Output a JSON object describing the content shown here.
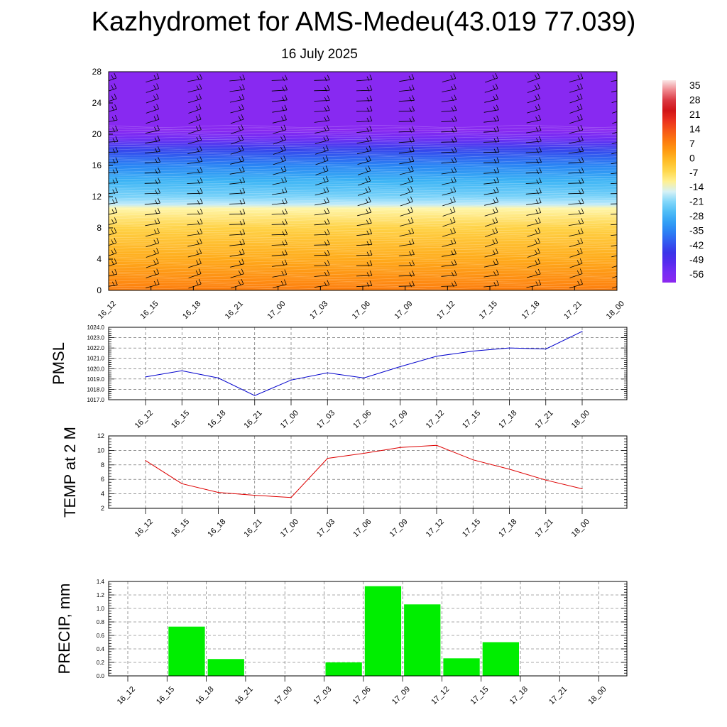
{
  "header": {
    "title": "Kazhydromet for AMS-Medeu(43.019 77.039)",
    "date": "16 July 2025"
  },
  "colors": {
    "pmsl_line": "#0000cc",
    "temp_line": "#dd0000",
    "precip_bar": "#00ee00"
  },
  "chart_data": [
    {
      "type": "heatmap",
      "id": "vertical-profile",
      "categories": [
        "16_12",
        "16_15",
        "16_18",
        "16_21",
        "17_00",
        "17_03",
        "17_06",
        "17_09",
        "17_12",
        "17_15",
        "17_18",
        "17_21",
        "18_00"
      ],
      "ylim": [
        0,
        28
      ],
      "yticks": [
        0,
        4,
        8,
        12,
        16,
        20,
        24,
        28
      ],
      "colorbar": {
        "labels": [
          "35",
          "28",
          "21",
          "14",
          "7",
          "0",
          "-7",
          "-14",
          "-21",
          "-28",
          "-35",
          "-42",
          "-49",
          "-56"
        ],
        "min": -63,
        "max": 42
      },
      "profile": [
        {
          "h": 0,
          "v": 10
        },
        {
          "h": 4,
          "v": 3
        },
        {
          "h": 8,
          "v": -4
        },
        {
          "h": 10.5,
          "v": -12
        },
        {
          "h": 11,
          "v": -17
        },
        {
          "h": 12,
          "v": -22
        },
        {
          "h": 14,
          "v": -28
        },
        {
          "h": 16,
          "v": -36
        },
        {
          "h": 18,
          "v": -45
        },
        {
          "h": 19.5,
          "v": -57
        },
        {
          "h": 20.5,
          "v": -62
        },
        {
          "h": 28,
          "v": -62
        }
      ],
      "wind_barbs": true
    },
    {
      "type": "line",
      "id": "pmsl",
      "ylabel": "PMSL",
      "categories": [
        "16_12",
        "16_15",
        "16_18",
        "16_21",
        "17_00",
        "17_03",
        "17_06",
        "17_09",
        "17_12",
        "17_15",
        "17_18",
        "17_21",
        "18_00"
      ],
      "values": [
        1019.2,
        1019.8,
        1019.1,
        1017.4,
        1018.9,
        1019.6,
        1019.1,
        1020.2,
        1021.2,
        1021.7,
        1022.0,
        1021.9,
        1023.6
      ],
      "ylim": [
        1017.0,
        1024.0
      ],
      "yticks": [
        "1017.0",
        "1018.0",
        "1019.0",
        "1020.0",
        "1021.0",
        "1022.0",
        "1023.0",
        "1024.0"
      ],
      "grid": true
    },
    {
      "type": "line",
      "id": "temp",
      "ylabel": "TEMP at 2 M",
      "categories": [
        "16_12",
        "16_15",
        "16_18",
        "16_21",
        "17_00",
        "17_03",
        "17_06",
        "17_09",
        "17_12",
        "17_15",
        "17_18",
        "17_21",
        "18_00"
      ],
      "values": [
        8.6,
        5.4,
        4.2,
        3.8,
        3.5,
        8.9,
        9.6,
        10.4,
        10.7,
        8.7,
        7.4,
        5.9,
        4.7
      ],
      "ylim": [
        2,
        12
      ],
      "yticks": [
        "2",
        "4",
        "6",
        "8",
        "10",
        "12"
      ],
      "grid": true
    },
    {
      "type": "bar",
      "id": "precip",
      "ylabel": "PRECIP, mm",
      "categories": [
        "16_12",
        "16_15",
        "16_18",
        "16_21",
        "17_00",
        "17_03",
        "17_06",
        "17_09",
        "17_12",
        "17_15",
        "17_18",
        "17_21",
        "18_00"
      ],
      "values": [
        0,
        0.73,
        0.25,
        0,
        0,
        0.2,
        1.33,
        1.06,
        0.26,
        0.5,
        0,
        0,
        0
      ],
      "ylim": [
        0,
        1.4
      ],
      "yticks": [
        "0.0",
        "0.2",
        "0.4",
        "0.6",
        "0.8",
        "1.0",
        "1.2",
        "1.4"
      ],
      "grid": true
    }
  ]
}
